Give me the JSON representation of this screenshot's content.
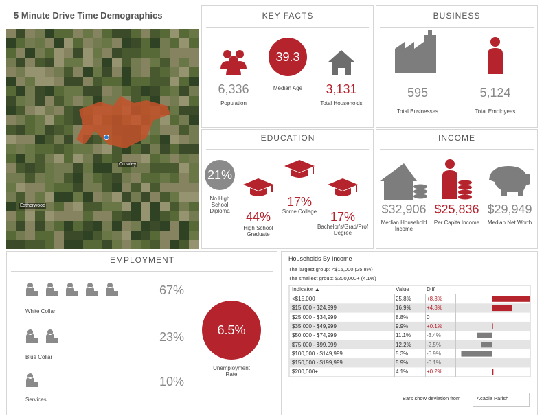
{
  "header": {
    "title": "5 Minute Drive Time Demographics"
  },
  "map": {
    "labels": [
      "Crowley",
      "Estherwood"
    ]
  },
  "key_facts": {
    "title": "KEY FACTS",
    "items": [
      {
        "value": "6,336",
        "label": "Population"
      },
      {
        "value": "39.3",
        "label": "Median Age"
      },
      {
        "value": "3,131",
        "label": "Total Households"
      }
    ]
  },
  "business": {
    "title": "BUSINESS",
    "items": [
      {
        "value": "595",
        "label": "Total Businesses"
      },
      {
        "value": "5,124",
        "label": "Total Employees"
      }
    ]
  },
  "education": {
    "title": "EDUCATION",
    "items": [
      {
        "value": "21%",
        "label": "No High School Diploma"
      },
      {
        "value": "44%",
        "label": "High School Graduate"
      },
      {
        "value": "17%",
        "label": "Some College"
      },
      {
        "value": "17%",
        "label": "Bachelor's/Grad/Prof Degree"
      }
    ]
  },
  "income": {
    "title": "INCOME",
    "items": [
      {
        "value": "$32,906",
        "label": "Median Household Income"
      },
      {
        "value": "$25,836",
        "label": "Per Capita Income"
      },
      {
        "value": "$29,949",
        "label": "Median Net Worth"
      }
    ]
  },
  "employment": {
    "title": "EMPLOYMENT",
    "items": [
      {
        "value": "67%",
        "label": "White Collar"
      },
      {
        "value": "23%",
        "label": "Blue Collar"
      },
      {
        "value": "10%",
        "label": "Services"
      }
    ],
    "unemployment": {
      "value": "6.5%",
      "label": "Unemployment Rate"
    }
  },
  "households": {
    "title": "Households By Income",
    "largest": "The largest group: <$15,000 (25.8%)",
    "smallest": "The smallest group: $200,000+ (4.1%)",
    "columns": [
      "Indicator ▲",
      "Value",
      "Diff"
    ],
    "rows": [
      {
        "indicator": "<$15,000",
        "value": "25.8%",
        "diff": {
          "value": 8.3,
          "label": "+8.3%"
        }
      },
      {
        "indicator": "$15,000 - $24,999",
        "value": "16.9%",
        "diff": {
          "value": 4.3,
          "label": "+4.3%"
        }
      },
      {
        "indicator": "$25,000 - $34,999",
        "value": "8.8%",
        "diff": 0
      },
      {
        "indicator": "$35,000 - $49,999",
        "value": "9.9%",
        "diff": {
          "value": 0.1,
          "label": "+0.1%"
        }
      },
      {
        "indicator": "$50,000 - $74,999",
        "value": "11.1%",
        "diff": {
          "value": -3.4,
          "label": "-3.4%"
        }
      },
      {
        "indicator": "$75,000 - $99,999",
        "value": "12.2%",
        "diff": {
          "value": -2.5,
          "label": "-2.5%"
        }
      },
      {
        "indicator": "$100,000 - $149,999",
        "value": "5.3%",
        "diff": {
          "value": -6.9,
          "label": "-6.9%"
        }
      },
      {
        "indicator": "$150,000 - $199,999",
        "value": "5.9%",
        "diff": {
          "value": -0.1,
          "label": "-0.1%"
        }
      },
      {
        "indicator": "$200,000+",
        "value": "4.1%",
        "diff": {
          "value": 0.2,
          "label": "+0.2%"
        }
      }
    ],
    "footer": "Bars show deviation from",
    "reference": "Acadia Parish"
  }
}
